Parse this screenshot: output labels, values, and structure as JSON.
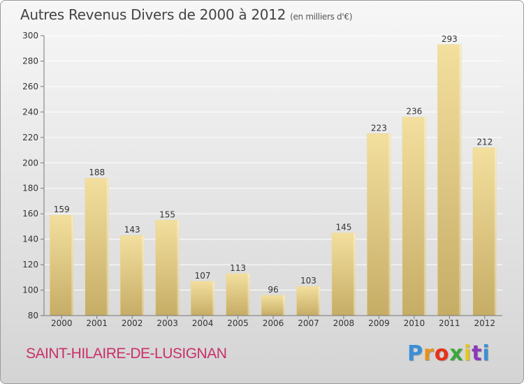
{
  "header": {
    "title": "Autres Revenus Divers de 2000 à 2012",
    "subtitle": "(en milliers d'€)"
  },
  "footer": {
    "location": "SAINT-HILAIRE-DE-LUSIGNAN",
    "logo": "Proxiti",
    "logo_colors": [
      "#3a8fd8",
      "#e8901a",
      "#e8321a",
      "#3aa83a",
      "#e8c81a",
      "#8a3ab8",
      "#3a8fd8"
    ]
  },
  "colors": {
    "bar_top": "#f3df9e",
    "bar_bottom": "#c6ad66",
    "axis": "#777777",
    "grid": "#ffffff",
    "text": "#333333"
  },
  "chart_data": {
    "type": "bar",
    "title": "Autres Revenus Divers de 2000 à 2012",
    "subtitle": "(en milliers d'€)",
    "categories": [
      "2000",
      "2001",
      "2002",
      "2003",
      "2004",
      "2005",
      "2006",
      "2007",
      "2008",
      "2009",
      "2010",
      "2011",
      "2012"
    ],
    "values": [
      159,
      188,
      143,
      155,
      107,
      113,
      96,
      103,
      145,
      223,
      236,
      293,
      212
    ],
    "ylim": [
      80,
      300
    ],
    "yticks": [
      80,
      100,
      120,
      140,
      160,
      180,
      200,
      220,
      240,
      260,
      280,
      300
    ],
    "grid": true,
    "data_labels": true
  }
}
